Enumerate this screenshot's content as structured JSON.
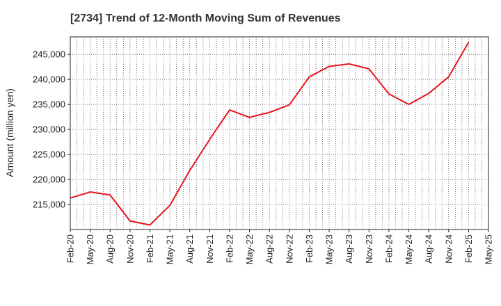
{
  "chart_data": {
    "type": "line",
    "title": "[2734]  Trend of 12-Month Moving Sum of Revenues",
    "xlabel": "",
    "ylabel": "Amount (million yen)",
    "ylim": [
      210000,
      248500
    ],
    "yticks": [
      215000,
      220000,
      225000,
      230000,
      235000,
      240000,
      245000
    ],
    "ytick_labels": [
      "215,000",
      "220,000",
      "225,000",
      "230,000",
      "235,000",
      "240,000",
      "245,000"
    ],
    "xtick_labels": [
      "Feb-20",
      "May-20",
      "Aug-20",
      "Nov-20",
      "Feb-21",
      "May-21",
      "Aug-21",
      "Nov-21",
      "Feb-22",
      "May-22",
      "Aug-22",
      "Nov-22",
      "Feb-23",
      "May-23",
      "Aug-23",
      "Nov-23",
      "Feb-24",
      "May-24",
      "Aug-24",
      "Nov-24",
      "Feb-25",
      "May-25"
    ],
    "grid": true,
    "series": [
      {
        "color": "#e8141b",
        "x": [
          "Feb-20",
          "May-20",
          "Aug-20",
          "Nov-20",
          "Feb-21",
          "May-21",
          "Aug-21",
          "Nov-21",
          "Feb-22",
          "May-22",
          "Aug-22",
          "Nov-22",
          "Feb-23",
          "May-23",
          "Aug-23",
          "Nov-23",
          "Feb-24",
          "May-24",
          "Aug-24",
          "Nov-24",
          "Feb-25"
        ],
        "values": [
          216300,
          217500,
          216900,
          211700,
          210900,
          214800,
          221800,
          228000,
          233900,
          232400,
          233400,
          234900,
          240500,
          242600,
          243100,
          242100,
          237100,
          235000,
          237200,
          240500,
          247400
        ]
      }
    ]
  }
}
